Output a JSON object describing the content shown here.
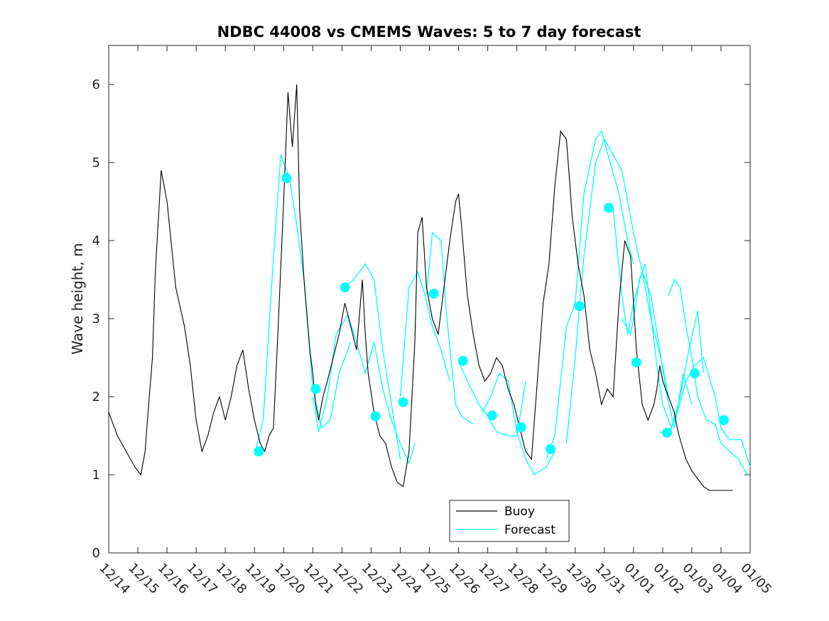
{
  "chart_data": {
    "type": "line",
    "title": "NDBC 44008 vs CMEMS Waves: 5 to 7 day forecast",
    "xlabel": "",
    "ylabel": "Wave height, m",
    "xlim": [
      0,
      22
    ],
    "ylim": [
      0,
      6.5
    ],
    "yticks": [
      0,
      1,
      2,
      3,
      4,
      5,
      6
    ],
    "xtick_labels": [
      "12/14",
      "12/15",
      "12/16",
      "12/17",
      "12/18",
      "12/19",
      "12/20",
      "12/21",
      "12/22",
      "12/23",
      "12/24",
      "12/25",
      "12/26",
      "12/27",
      "12/28",
      "12/29",
      "12/30",
      "12/31",
      "01/01",
      "01/02",
      "01/03",
      "01/04",
      "01/05"
    ],
    "x_units": "days since 12/14 00:00",
    "legend": {
      "position": "bottom-center",
      "entries": [
        "Buoy",
        "Forecast"
      ]
    },
    "colors": {
      "buoy": "#000000",
      "forecast": "#00ffff",
      "axes": "#262626"
    },
    "series": [
      {
        "name": "Buoy",
        "x": [
          0,
          0.3,
          0.6,
          0.9,
          1.1,
          1.25,
          1.35,
          1.5,
          1.6,
          1.8,
          2.0,
          2.3,
          2.6,
          2.8,
          3.0,
          3.2,
          3.4,
          3.6,
          3.8,
          4.0,
          4.2,
          4.4,
          4.6,
          4.8,
          5.0,
          5.2,
          5.35,
          5.5,
          5.65,
          5.8,
          6.0,
          6.15,
          6.3,
          6.45,
          6.55,
          6.7,
          6.9,
          7.0,
          7.1,
          7.2,
          7.35,
          7.5,
          7.7,
          7.9,
          8.1,
          8.3,
          8.5,
          8.7,
          8.8,
          8.9,
          9.1,
          9.3,
          9.5,
          9.7,
          9.9,
          10.1,
          10.3,
          10.5,
          10.6,
          10.75,
          10.9,
          11.1,
          11.3,
          11.5,
          11.7,
          11.9,
          12.0,
          12.1,
          12.3,
          12.5,
          12.7,
          12.9,
          13.1,
          13.3,
          13.5,
          13.7,
          13.9,
          14.1,
          14.3,
          14.5,
          14.7,
          14.9,
          15.1,
          15.3,
          15.5,
          15.7,
          15.9,
          16.1,
          16.3,
          16.5,
          16.7,
          16.9,
          17.1,
          17.3,
          17.5,
          17.7,
          17.9,
          18.1,
          18.3,
          18.5,
          18.7,
          18.8,
          18.9,
          19.0,
          19.2,
          19.4,
          19.5,
          19.6,
          19.8,
          20.0,
          20.2,
          20.4,
          20.6,
          20.8,
          21.0,
          21.2,
          21.4
        ],
        "y": [
          1.8,
          1.5,
          1.3,
          1.1,
          1.0,
          1.3,
          1.8,
          2.5,
          3.6,
          4.9,
          4.5,
          3.4,
          2.9,
          2.4,
          1.7,
          1.3,
          1.5,
          1.8,
          2.0,
          1.7,
          2.0,
          2.4,
          2.6,
          2.1,
          1.7,
          1.4,
          1.3,
          1.5,
          1.6,
          2.8,
          4.5,
          5.9,
          5.2,
          6.0,
          4.4,
          3.5,
          2.6,
          2.3,
          1.9,
          1.7,
          2.0,
          2.2,
          2.5,
          2.8,
          3.2,
          2.9,
          2.6,
          3.5,
          2.8,
          2.3,
          1.8,
          1.5,
          1.4,
          1.1,
          0.9,
          0.85,
          1.3,
          2.7,
          4.1,
          4.3,
          3.4,
          3.0,
          2.8,
          3.4,
          4.0,
          4.5,
          4.6,
          4.2,
          3.3,
          2.8,
          2.4,
          2.2,
          2.3,
          2.5,
          2.4,
          2.1,
          1.9,
          1.6,
          1.3,
          1.2,
          2.2,
          3.2,
          3.7,
          4.7,
          5.4,
          5.3,
          4.3,
          3.7,
          3.3,
          2.6,
          2.3,
          1.9,
          2.1,
          2.0,
          3.2,
          4.0,
          3.8,
          2.6,
          1.9,
          1.7,
          1.9,
          2.1,
          2.4,
          2.2,
          2.0,
          1.8,
          1.6,
          1.45,
          1.2,
          1.05,
          0.95,
          0.85,
          0.8,
          0.8,
          0.8,
          0.8,
          0.8
        ]
      },
      {
        "name": "Forecast",
        "segments": [
          {
            "x": [
              5.0,
              5.3,
              5.6,
              5.9,
              6.2,
              6.45,
              6.7,
              7.0,
              7.3,
              7.6,
              7.9,
              8.3
            ],
            "y": [
              1.25,
              1.7,
              3.5,
              5.1,
              4.8,
              4.2,
              3.5,
              2.1,
              1.6,
              1.7,
              2.3,
              2.7
            ]
          },
          {
            "x": [
              7.0,
              7.2,
              7.5,
              7.8,
              8.2,
              8.5,
              8.8,
              9.1,
              9.4,
              9.7,
              10.0,
              10.3,
              10.5
            ],
            "y": [
              2.0,
              1.55,
              2.0,
              2.8,
              3.05,
              2.7,
              2.3,
              2.7,
              2.1,
              1.7,
              1.4,
              1.15,
              1.4
            ]
          },
          {
            "x": [
              8.1,
              8.4,
              8.8,
              9.1,
              9.4,
              9.7,
              10.0
            ],
            "y": [
              3.4,
              3.5,
              3.7,
              3.5,
              2.6,
              1.9,
              1.2
            ]
          },
          {
            "x": [
              10.0,
              10.3,
              10.6,
              10.85,
              11.1,
              11.4,
              11.7
            ],
            "y": [
              2.0,
              3.4,
              3.6,
              3.3,
              2.9,
              2.6,
              2.2
            ]
          },
          {
            "x": [
              10.9,
              11.1,
              11.4,
              11.6,
              11.9,
              12.1,
              12.5
            ],
            "y": [
              3.3,
              4.1,
              4.0,
              3.0,
              1.9,
              1.75,
              1.65
            ]
          },
          {
            "x": [
              12.0,
              12.3,
              12.7,
              13.0,
              13.3,
              13.7,
              14.0,
              14.3
            ],
            "y": [
              2.45,
              2.2,
              1.9,
              1.75,
              1.55,
              1.5,
              1.5,
              2.2
            ]
          },
          {
            "x": [
              12.8,
              13.1,
              13.4,
              13.7,
              14.0,
              14.3,
              14.6,
              15.0,
              15.3
            ],
            "y": [
              1.8,
              2.0,
              2.3,
              2.2,
              1.55,
              1.2,
              1.0,
              1.1,
              1.3
            ]
          },
          {
            "x": [
              15.0,
              15.3,
              15.7,
              16.0,
              16.3,
              16.7,
              16.9,
              17.2,
              17.5,
              17.8,
              18.0
            ],
            "y": [
              1.2,
              1.5,
              2.9,
              3.2,
              4.6,
              5.3,
              5.4,
              5.0,
              4.6,
              4.0,
              3.7
            ]
          },
          {
            "x": [
              15.7,
              16.0,
              16.3,
              16.7,
              17.0,
              17.3,
              17.6,
              17.8,
              18.0,
              18.3,
              18.6,
              18.8,
              19.0,
              19.2
            ],
            "y": [
              1.4,
              2.5,
              3.8,
              5.0,
              5.3,
              5.1,
              4.9,
              4.5,
              4.1,
              3.6,
              3.0,
              2.7,
              2.4,
              2.0
            ]
          },
          {
            "x": [
              17.3,
              17.6,
              17.8,
              18.0,
              18.3,
              18.6,
              18.9,
              19.1,
              19.4,
              19.7,
              20.0
            ],
            "y": [
              4.4,
              3.3,
              2.8,
              3.2,
              3.6,
              3.3,
              2.6,
              2.1,
              1.6,
              2.3,
              1.9
            ]
          },
          {
            "x": [
              17.6,
              17.9,
              18.0,
              18.2,
              18.4,
              18.8,
              19.0,
              19.3,
              19.6,
              19.9,
              20.2,
              20.4
            ],
            "y": [
              3.0,
              2.8,
              3.0,
              3.5,
              3.7,
              2.4,
              1.9,
              1.6,
              2.0,
              2.6,
              3.1,
              2.3
            ]
          },
          {
            "x": [
              18.9,
              19.2,
              19.5,
              19.8,
              20.1,
              20.4,
              20.8,
              21.0,
              21.3,
              21.7,
              22.0
            ],
            "y": [
              1.55,
              1.5,
              1.8,
              2.2,
              2.4,
              2.5,
              2.0,
              1.6,
              1.45,
              1.45,
              1.1
            ]
          },
          {
            "x": [
              19.2,
              19.4,
              19.6,
              19.8,
              20.0,
              20.2,
              20.5,
              20.8,
              21.0,
              21.3,
              21.6,
              21.9
            ],
            "y": [
              3.3,
              3.5,
              3.4,
              2.9,
              2.5,
              2.0,
              1.7,
              1.65,
              1.4,
              1.3,
              1.2,
              1.0
            ]
          }
        ],
        "markers": {
          "x": [
            5.15,
            6.1,
            7.1,
            8.1,
            9.15,
            10.1,
            11.15,
            12.15,
            13.15,
            14.15,
            15.15,
            16.15,
            17.15,
            18.1,
            19.15,
            20.1,
            21.1
          ],
          "y": [
            1.3,
            4.8,
            2.1,
            3.4,
            1.75,
            1.93,
            3.32,
            2.46,
            1.76,
            1.61,
            1.33,
            3.16,
            4.42,
            2.44,
            1.54,
            2.3,
            1.7
          ]
        }
      }
    ]
  }
}
